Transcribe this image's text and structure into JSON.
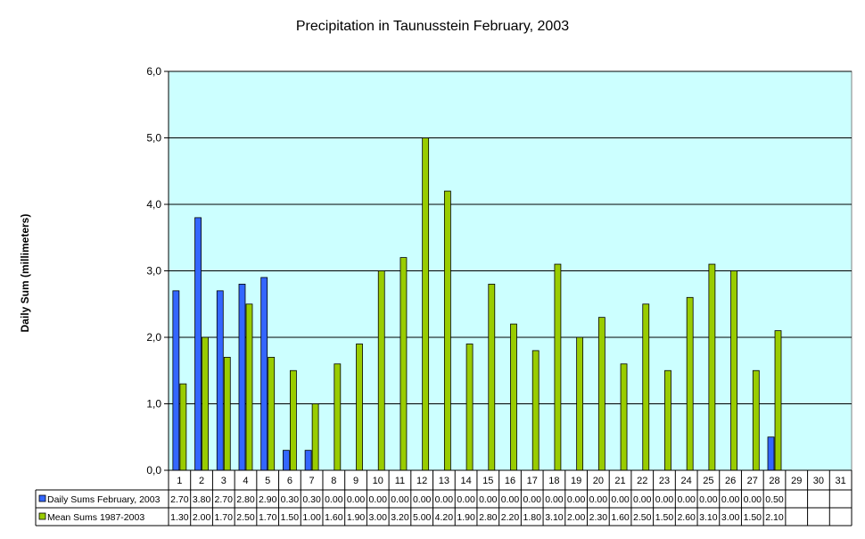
{
  "chart_data": {
    "type": "bar",
    "title": "Precipitation in Taunusstein February, 2003",
    "xlabel": "",
    "ylabel": "Daily Sum (millimeters)",
    "ylim": [
      0,
      6
    ],
    "ytick_labels": [
      "0,0",
      "1,0",
      "2,0",
      "3,0",
      "4,0",
      "5,0",
      "6,0"
    ],
    "grid": true,
    "legend": "data-table-left",
    "categories": [
      "1",
      "2",
      "3",
      "4",
      "5",
      "6",
      "7",
      "8",
      "9",
      "10",
      "11",
      "12",
      "13",
      "14",
      "15",
      "16",
      "17",
      "18",
      "19",
      "20",
      "21",
      "22",
      "23",
      "24",
      "25",
      "26",
      "27",
      "28",
      "29",
      "30",
      "31"
    ],
    "series": [
      {
        "name": "Daily Sums February, 2003",
        "color": "#3366ff",
        "values": [
          2.7,
          3.8,
          2.7,
          2.8,
          2.9,
          0.3,
          0.3,
          0,
          0,
          0,
          0,
          0,
          0,
          0,
          0,
          0,
          0,
          0,
          0,
          0,
          0,
          0,
          0,
          0,
          0,
          0,
          0,
          0.5,
          null,
          null,
          null
        ],
        "table_labels": [
          "2.70",
          "3.80",
          "2.70",
          "2.80",
          "2.90",
          "0.30",
          "0.30",
          "0.00",
          "0.00",
          "0.00",
          "0.00",
          "0.00",
          "0.00",
          "0.00",
          "0.00",
          "0.00",
          "0.00",
          "0.00",
          "0.00",
          "0.00",
          "0.00",
          "0.00",
          "0.00",
          "0.00",
          "0.00",
          "0.00",
          "0.00",
          "0.50",
          "",
          "",
          ""
        ]
      },
      {
        "name": "Mean Sums 1987-2003",
        "color": "#99cc00",
        "values": [
          1.3,
          2.0,
          1.7,
          2.5,
          1.7,
          1.5,
          1.0,
          1.6,
          1.9,
          3.0,
          3.2,
          5.0,
          4.2,
          1.9,
          2.8,
          2.2,
          1.8,
          3.1,
          2.0,
          2.3,
          1.6,
          2.5,
          1.5,
          2.6,
          3.1,
          3.0,
          1.5,
          2.1,
          null,
          null,
          null
        ],
        "table_labels": [
          "1.30",
          "2.00",
          "1.70",
          "2.50",
          "1.70",
          "1.50",
          "1.00",
          "1.60",
          "1.90",
          "3.00",
          "3.20",
          "5.00",
          "4.20",
          "1.90",
          "2.80",
          "2.20",
          "1.80",
          "3.10",
          "2.00",
          "2.30",
          "1.60",
          "2.50",
          "1.50",
          "2.60",
          "3.10",
          "3.00",
          "1.50",
          "2.10",
          "",
          "",
          ""
        ]
      }
    ],
    "plot_background": "#ccffff"
  }
}
